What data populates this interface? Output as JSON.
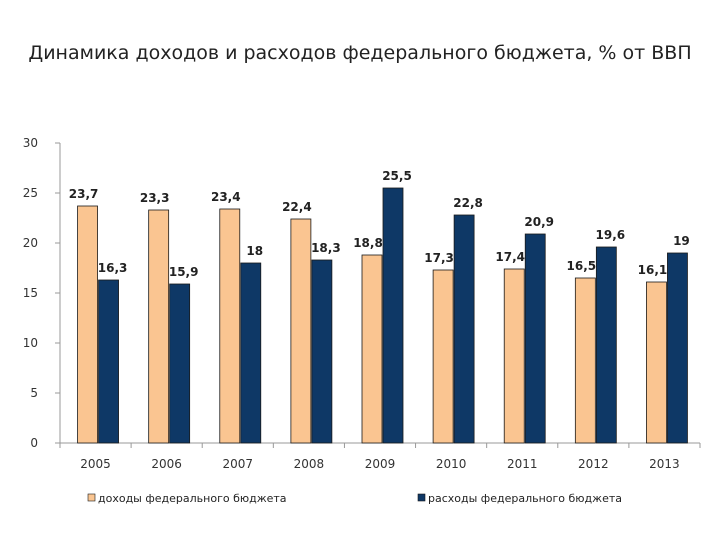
{
  "chart_data": {
    "type": "bar",
    "title": "Динамика доходов и расходов федерального бюджета, % от ВВП",
    "categories": [
      "2005",
      "2006",
      "2007",
      "2008",
      "2009",
      "2010",
      "2011",
      "2012",
      "2013"
    ],
    "series": [
      {
        "name": "доходы федерального бюджета",
        "color": "#FAC591",
        "values": [
          23.7,
          23.3,
          23.4,
          22.4,
          18.8,
          17.3,
          17.4,
          16.5,
          16.1
        ],
        "labels": [
          "23,7",
          "23,3",
          "23,4",
          "22,4",
          "18,8",
          "17,3",
          "17,4",
          "16,5",
          "16,1"
        ]
      },
      {
        "name": "расходы федерального бюджета",
        "color": "#0E3866",
        "values": [
          16.3,
          15.9,
          18,
          18.3,
          25.5,
          22.8,
          20.9,
          19.6,
          19
        ],
        "labels": [
          "16,3",
          "15,9",
          "18",
          "18,3",
          "25,5",
          "22,8",
          "20,9",
          "19,6",
          "19"
        ]
      }
    ],
    "yticks": [
      "0",
      "5",
      "10",
      "15",
      "20",
      "25",
      "30"
    ],
    "ylim": [
      0,
      30
    ],
    "xlabel": "",
    "ylabel": "",
    "grid": false,
    "legend_position": "bottom"
  }
}
